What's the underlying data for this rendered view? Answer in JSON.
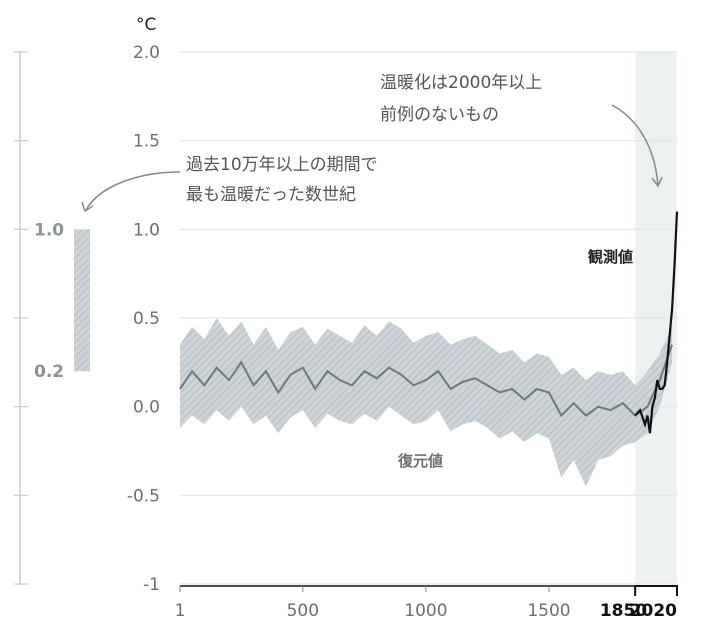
{
  "chart_data": {
    "type": "line",
    "unit": "°C",
    "ylim": [
      -1,
      2
    ],
    "yticks": [
      "2.0",
      "1.5",
      "1.0",
      "0.5",
      "0.0",
      "-0.5",
      "-1"
    ],
    "xticks": [
      "1",
      "500",
      "1000",
      "1500"
    ],
    "xticks_bold": [
      "1850",
      "2020"
    ],
    "xlim": [
      1,
      2020
    ],
    "shaded_region": [
      1850,
      2020
    ],
    "side_range": {
      "labels": [
        "1.0",
        "0.2"
      ],
      "min": 0.2,
      "max": 1.0
    },
    "annotations": {
      "top_line1": "温暖化は2000年以上",
      "top_line2": "前例のないもの",
      "left_line1": "過去10万年以上の期間で",
      "left_line2": "最も温暖だった数世紀"
    },
    "series": [
      {
        "name": "復元値",
        "color": "#6e7a80",
        "x": [
          1,
          50,
          100,
          150,
          200,
          250,
          300,
          350,
          400,
          450,
          500,
          550,
          600,
          650,
          700,
          750,
          800,
          850,
          900,
          950,
          1000,
          1050,
          1100,
          1150,
          1200,
          1250,
          1300,
          1350,
          1400,
          1450,
          1500,
          1550,
          1600,
          1650,
          1700,
          1750,
          1800,
          1850,
          1900,
          1950,
          2000
        ],
        "y": [
          0.1,
          0.2,
          0.12,
          0.22,
          0.15,
          0.25,
          0.12,
          0.2,
          0.08,
          0.18,
          0.22,
          0.1,
          0.2,
          0.15,
          0.12,
          0.2,
          0.16,
          0.22,
          0.18,
          0.12,
          0.15,
          0.2,
          0.1,
          0.14,
          0.16,
          0.12,
          0.08,
          0.1,
          0.04,
          0.1,
          0.08,
          -0.05,
          0.02,
          -0.05,
          0.0,
          -0.02,
          0.02,
          -0.05,
          0.0,
          0.15,
          0.35
        ],
        "band_upper": [
          0.35,
          0.45,
          0.38,
          0.5,
          0.4,
          0.48,
          0.35,
          0.45,
          0.32,
          0.42,
          0.45,
          0.35,
          0.44,
          0.4,
          0.36,
          0.46,
          0.4,
          0.48,
          0.44,
          0.36,
          0.4,
          0.42,
          0.35,
          0.38,
          0.4,
          0.35,
          0.3,
          0.32,
          0.25,
          0.3,
          0.28,
          0.18,
          0.22,
          0.15,
          0.2,
          0.18,
          0.2,
          0.12,
          0.2,
          0.3,
          0.45
        ],
        "band_lower": [
          -0.12,
          -0.05,
          -0.1,
          -0.02,
          -0.08,
          0.0,
          -0.1,
          -0.05,
          -0.15,
          -0.06,
          -0.02,
          -0.12,
          -0.04,
          -0.08,
          -0.1,
          -0.04,
          -0.08,
          0.0,
          -0.05,
          -0.1,
          -0.08,
          -0.02,
          -0.14,
          -0.1,
          -0.08,
          -0.12,
          -0.18,
          -0.14,
          -0.2,
          -0.15,
          -0.18,
          -0.4,
          -0.3,
          -0.45,
          -0.3,
          -0.28,
          -0.22,
          -0.2,
          -0.15,
          0.0,
          0.25
        ]
      },
      {
        "name": "観測値",
        "color": "#111111",
        "x": [
          1850,
          1870,
          1890,
          1900,
          1910,
          1920,
          1930,
          1940,
          1950,
          1960,
          1970,
          1980,
          1990,
          2000,
          2010,
          2020
        ],
        "y": [
          -0.05,
          -0.02,
          -0.1,
          -0.05,
          -0.15,
          0.0,
          0.05,
          0.15,
          0.1,
          0.1,
          0.12,
          0.25,
          0.4,
          0.55,
          0.8,
          1.1
        ]
      }
    ]
  }
}
